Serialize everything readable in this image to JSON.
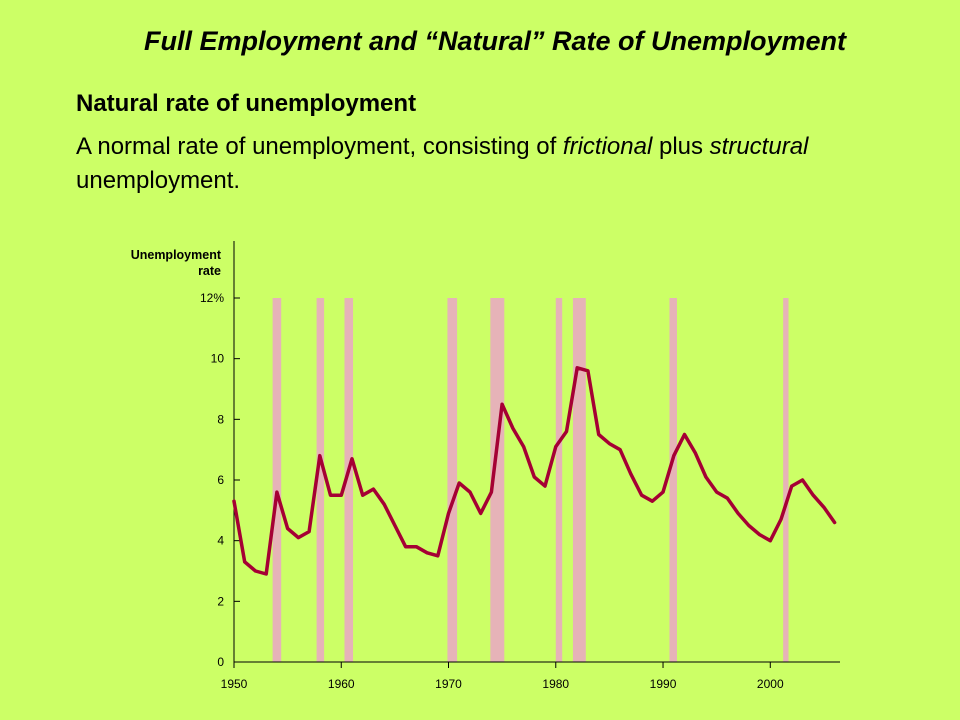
{
  "slide": {
    "title": "Full Employment and  “Natural” Rate of Unemployment",
    "heading": "Natural rate of unemployment",
    "definition_parts": [
      {
        "text": "A normal rate of unemployment, consisting of ",
        "italic": false
      },
      {
        "text": "frictional",
        "italic": true
      },
      {
        "text": " plus ",
        "italic": false
      },
      {
        "text": "structural",
        "italic": true
      },
      {
        "text": " unemployment.",
        "italic": false
      }
    ]
  },
  "colors": {
    "background": "#ccff66",
    "line": "#a50034",
    "recession_band": "#e6b3b8",
    "axis": "#000000"
  },
  "chart_data": {
    "type": "line",
    "ylabel_lines": [
      "Unemployment",
      "rate"
    ],
    "y_ticks": [
      "0",
      "2",
      "4",
      "6",
      "8",
      "10",
      "12%"
    ],
    "y_tick_values": [
      0,
      2,
      4,
      6,
      8,
      10,
      12
    ],
    "x_ticks": [
      "1950",
      "1960",
      "1970",
      "1980",
      "1990",
      "2000"
    ],
    "x_tick_values": [
      1950,
      1960,
      1970,
      1980,
      1990,
      2000
    ],
    "xlim": [
      1950,
      2006.5
    ],
    "ylim": [
      0,
      12
    ],
    "grid": false,
    "series": [
      {
        "x": [
          1950,
          1951,
          1952,
          1953,
          1954,
          1955,
          1956,
          1957,
          1958,
          1959,
          1960,
          1961,
          1962,
          1963,
          1964,
          1965,
          1966,
          1967,
          1968,
          1969,
          1970,
          1971,
          1972,
          1973,
          1974,
          1975,
          1976,
          1977,
          1978,
          1979,
          1980,
          1981,
          1982,
          1983,
          1984,
          1985,
          1986,
          1987,
          1988,
          1989,
          1990,
          1991,
          1992,
          1993,
          1994,
          1995,
          1996,
          1997,
          1998,
          1999,
          2000,
          2001,
          2002,
          2003,
          2004,
          2005,
          2006
        ],
        "y": [
          5.3,
          3.3,
          3.0,
          2.9,
          5.6,
          4.4,
          4.1,
          4.3,
          6.8,
          5.5,
          5.5,
          6.7,
          5.5,
          5.7,
          5.2,
          4.5,
          3.8,
          3.8,
          3.6,
          3.5,
          4.9,
          5.9,
          5.6,
          4.9,
          5.6,
          8.5,
          7.7,
          7.1,
          6.1,
          5.8,
          7.1,
          7.6,
          9.7,
          9.6,
          7.5,
          7.2,
          7.0,
          6.2,
          5.5,
          5.3,
          5.6,
          6.8,
          7.5,
          6.9,
          6.1,
          5.6,
          5.4,
          4.9,
          4.5,
          4.2,
          4.0,
          4.7,
          5.8,
          6.0,
          5.5,
          5.1,
          4.6
        ]
      }
    ],
    "recessions": [
      [
        1953.6,
        1954.4
      ],
      [
        1957.7,
        1958.4
      ],
      [
        1960.3,
        1961.1
      ],
      [
        1969.9,
        1970.8
      ],
      [
        1973.9,
        1975.2
      ],
      [
        1980.0,
        1980.6
      ],
      [
        1981.6,
        1982.8
      ],
      [
        1990.6,
        1991.3
      ],
      [
        2001.2,
        2001.7
      ]
    ]
  }
}
